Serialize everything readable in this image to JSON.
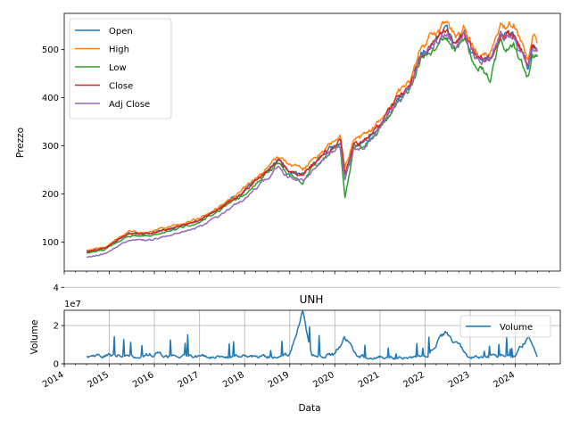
{
  "chart_data": [
    {
      "type": "line",
      "title": "",
      "xlabel": "",
      "ylabel": "Prezzo",
      "xlim": [
        "2014-01-01",
        "2024-12-31"
      ],
      "ylim": [
        40,
        575
      ],
      "yticks": [
        100,
        200,
        300,
        400,
        500
      ],
      "grid": false,
      "legend_position": "upper-left",
      "x_anchors": [
        "2014-07-01",
        "2014-12-01",
        "2015-06-01",
        "2015-12-01",
        "2016-06-01",
        "2016-12-01",
        "2017-06-01",
        "2017-12-01",
        "2018-06-01",
        "2018-10-01",
        "2018-12-24",
        "2019-04-15",
        "2019-07-01",
        "2019-11-01",
        "2020-02-15",
        "2020-03-23",
        "2020-06-01",
        "2020-09-01",
        "2020-12-01",
        "2021-03-01",
        "2021-06-01",
        "2021-09-01",
        "2021-12-01",
        "2022-03-01",
        "2022-06-15",
        "2022-09-01",
        "2022-11-15",
        "2023-01-15",
        "2023-03-15",
        "2023-06-15",
        "2023-09-01",
        "2023-10-25",
        "2023-12-20",
        "2024-02-15",
        "2024-04-15",
        "2024-05-20",
        "2024-06-28"
      ],
      "series": [
        {
          "name": "Open",
          "color": "#1f77b4",
          "values": [
            80,
            88,
            118,
            118,
            130,
            142,
            168,
            200,
            240,
            272,
            250,
            240,
            260,
            290,
            310,
            240,
            300,
            310,
            335,
            365,
            400,
            425,
            490,
            510,
            540,
            510,
            535,
            500,
            480,
            485,
            530,
            530,
            525,
            500,
            460,
            505,
            500
          ]
        },
        {
          "name": "High",
          "color": "#ff7f0e",
          "values": [
            82,
            90,
            122,
            122,
            134,
            146,
            172,
            205,
            246,
            280,
            262,
            252,
            268,
            300,
            320,
            255,
            310,
            320,
            345,
            372,
            412,
            432,
            510,
            530,
            555,
            525,
            550,
            515,
            495,
            495,
            545,
            545,
            550,
            520,
            475,
            530,
            515
          ]
        },
        {
          "name": "Low",
          "color": "#2ca02c",
          "values": [
            77,
            85,
            113,
            113,
            126,
            138,
            164,
            196,
            235,
            265,
            240,
            225,
            252,
            282,
            300,
            190,
            292,
            303,
            325,
            357,
            392,
            418,
            480,
            495,
            528,
            500,
            522,
            480,
            465,
            440,
            515,
            505,
            510,
            480,
            440,
            490,
            485
          ]
        },
        {
          "name": "Close",
          "color": "#d62728",
          "values": [
            80,
            88,
            118,
            118,
            130,
            142,
            168,
            200,
            240,
            272,
            250,
            240,
            260,
            290,
            310,
            240,
            300,
            310,
            335,
            365,
            400,
            425,
            490,
            510,
            540,
            510,
            535,
            500,
            480,
            485,
            530,
            530,
            525,
            500,
            460,
            505,
            500
          ]
        },
        {
          "name": "Adj Close",
          "color": "#9467bd",
          "values": [
            68,
            76,
            104,
            104,
            116,
            128,
            153,
            185,
            225,
            255,
            235,
            228,
            248,
            280,
            298,
            230,
            290,
            300,
            328,
            360,
            396,
            420,
            488,
            505,
            535,
            505,
            530,
            495,
            478,
            480,
            525,
            525,
            522,
            495,
            455,
            502,
            495
          ]
        }
      ]
    },
    {
      "type": "line",
      "title": "UNH",
      "xlabel": "Data",
      "ylabel": "Volume",
      "offset_label": "1e7",
      "xlim": [
        "2014-01-01",
        "2024-12-31"
      ],
      "ylim": [
        0,
        28000000
      ],
      "yticks": [
        0,
        2,
        4
      ],
      "grid": true,
      "legend_position": "upper-right",
      "xticks": [
        "2014",
        "2015",
        "2016",
        "2017",
        "2018",
        "2019",
        "2020",
        "2021",
        "2022",
        "2023",
        "2024"
      ],
      "x_anchors": [
        "2014-07-01",
        "2015-01-01",
        "2015-07-01",
        "2016-01-01",
        "2016-07-01",
        "2017-01-01",
        "2017-07-01",
        "2018-01-01",
        "2018-07-01",
        "2019-01-01",
        "2019-04-15",
        "2019-07-01",
        "2020-01-01",
        "2020-03-20",
        "2020-07-01",
        "2021-01-01",
        "2021-07-01",
        "2022-01-01",
        "2022-06-15",
        "2023-01-01",
        "2023-07-01",
        "2024-01-01",
        "2024-04-15",
        "2024-06-28"
      ],
      "series": [
        {
          "name": "Volume",
          "color": "#1f77b4",
          "values": [
            3500000,
            4500000,
            4000000,
            5000000,
            4000000,
            4000000,
            3500000,
            4000000,
            3500000,
            5000000,
            28000000,
            4000000,
            4500000,
            14000000,
            4000000,
            3500000,
            3000000,
            3500000,
            16000000,
            3500000,
            4000000,
            4000000,
            14000000,
            4000000
          ]
        }
      ]
    }
  ]
}
